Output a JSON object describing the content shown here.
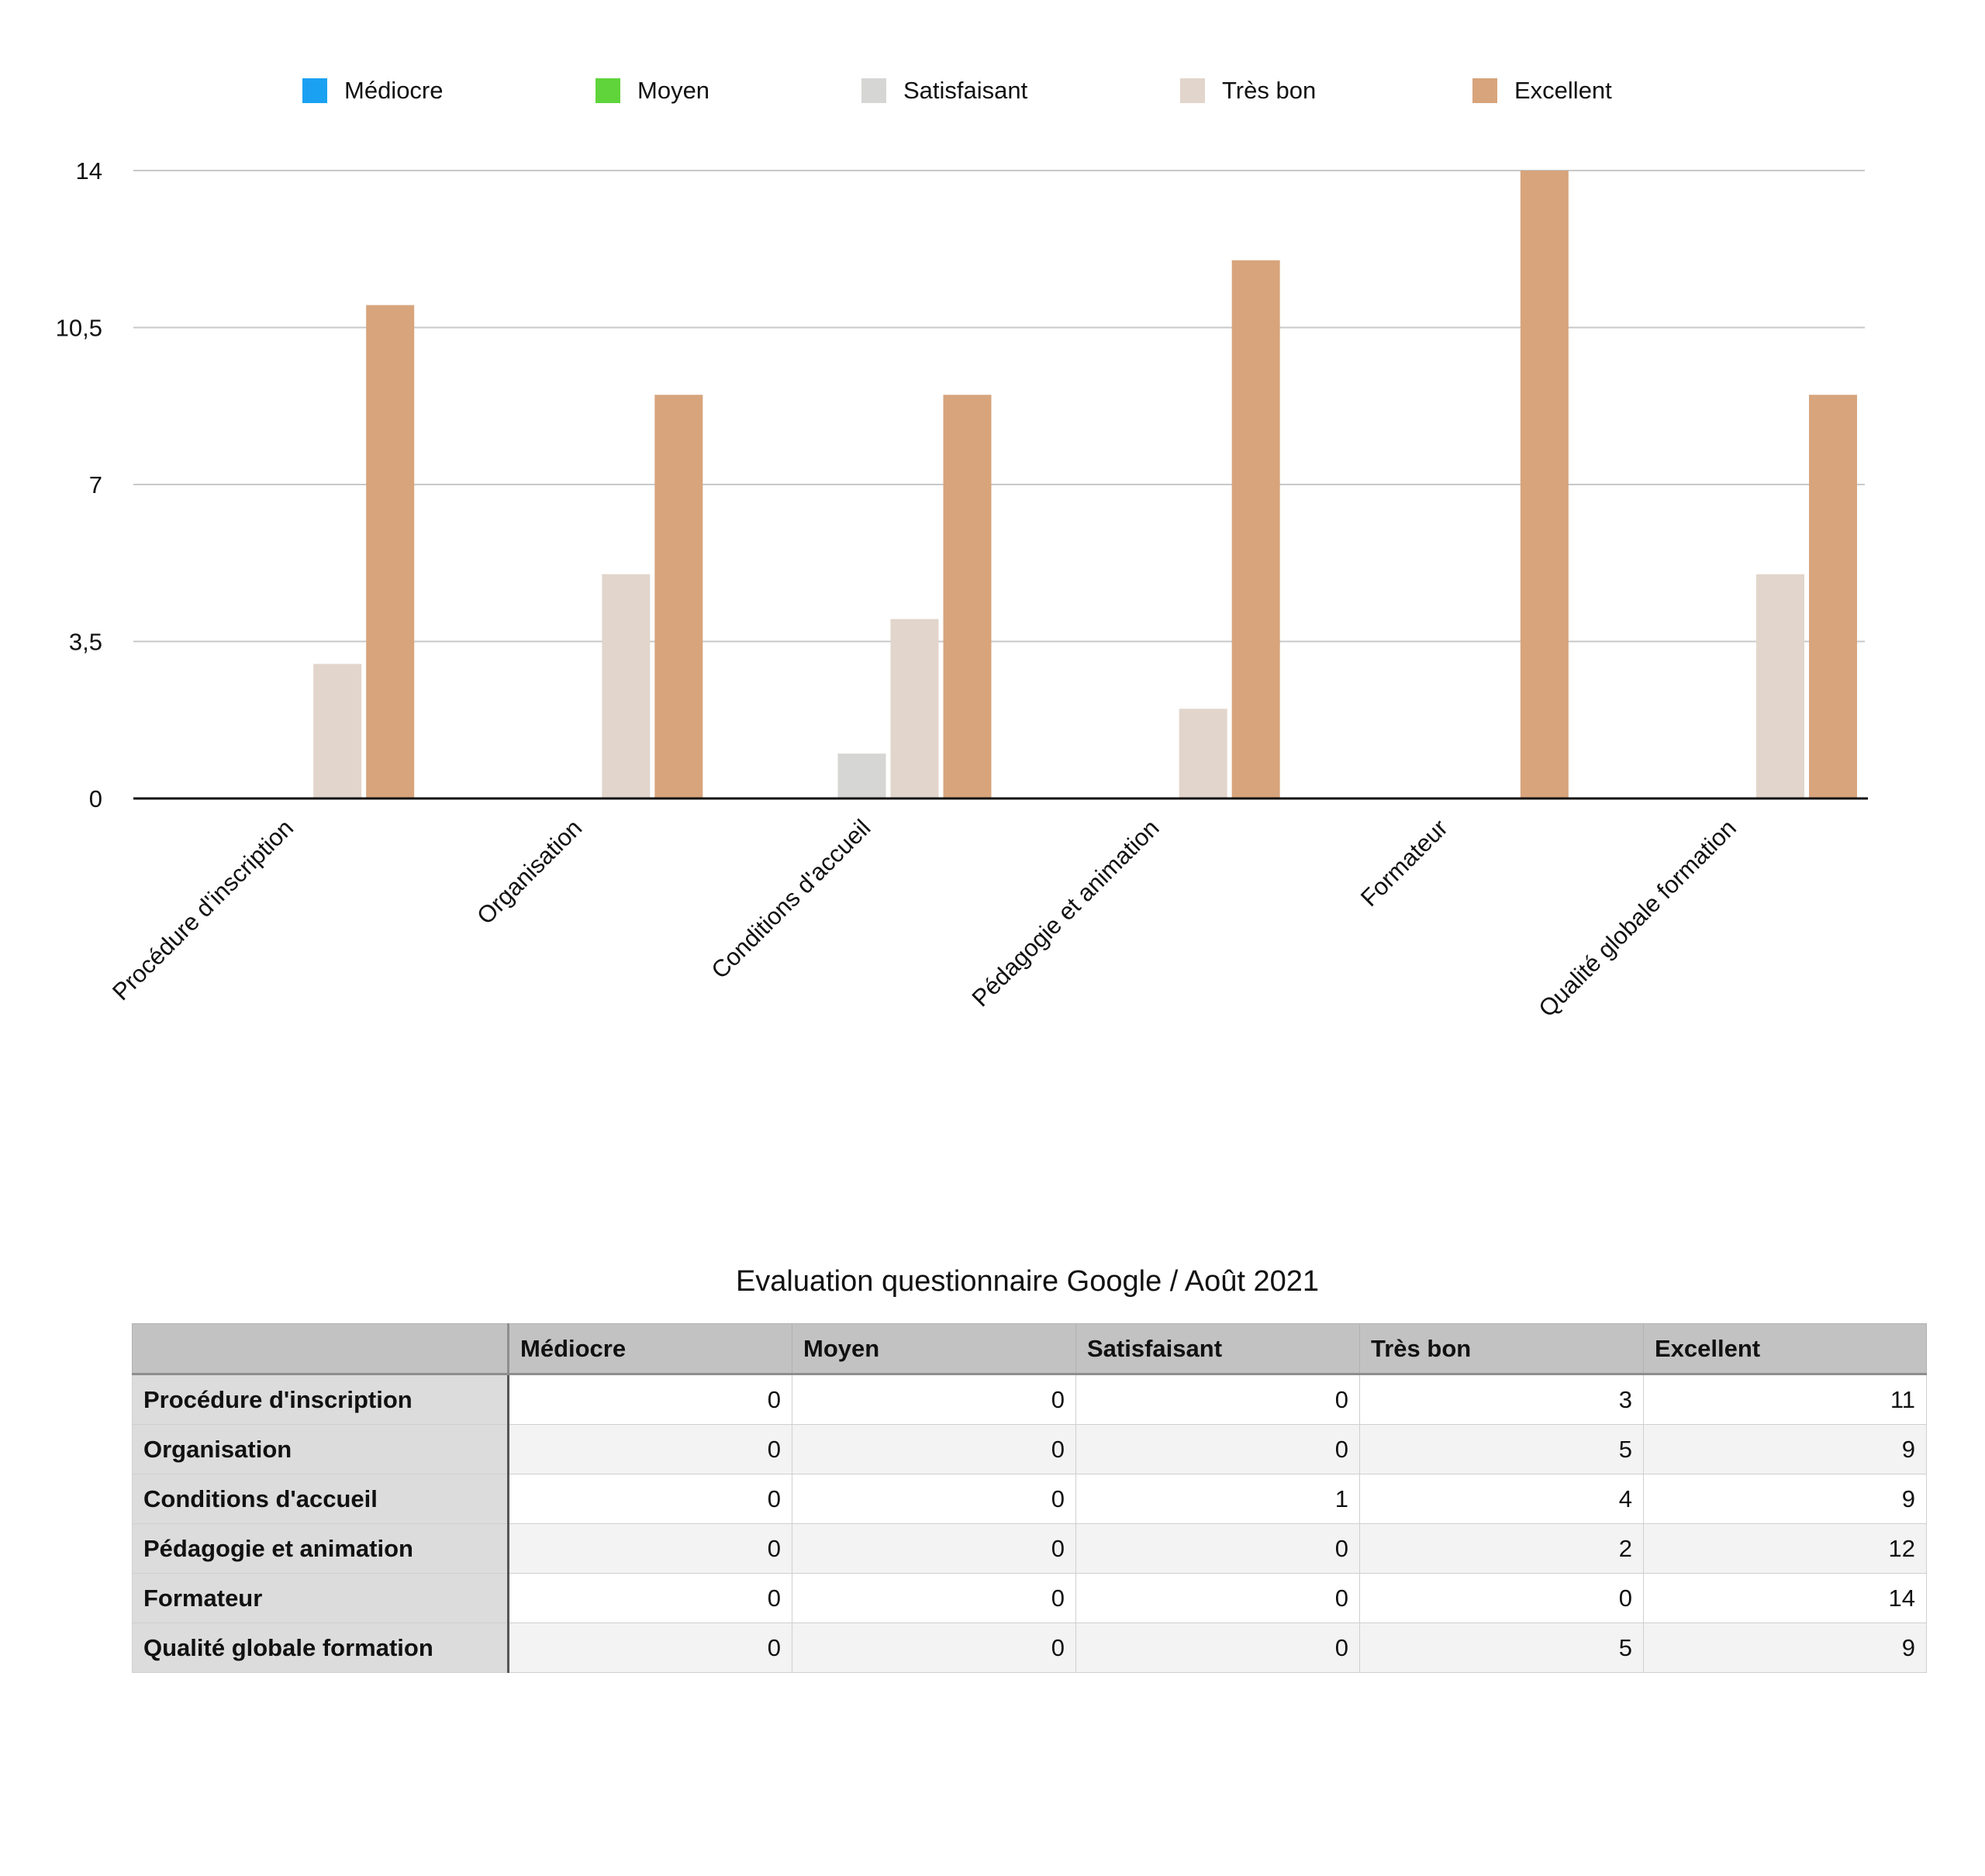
{
  "chart_data": {
    "type": "bar",
    "categories": [
      "Procédure d'inscription",
      "Organisation",
      "Conditions d'accueil",
      "Pédagogie et animation",
      "Formateur",
      "Qualité globale formation"
    ],
    "series": [
      {
        "name": "Médiocre",
        "color": "#1ba1f2",
        "values": [
          0,
          0,
          0,
          0,
          0,
          0
        ]
      },
      {
        "name": "Moyen",
        "color": "#5fd43b",
        "values": [
          0,
          0,
          0,
          0,
          0,
          0
        ]
      },
      {
        "name": "Satisfaisant",
        "color": "#d6d6d4",
        "values": [
          0,
          0,
          1,
          0,
          0,
          0
        ]
      },
      {
        "name": "Très bon",
        "color": "#e2d5cb",
        "values": [
          3,
          5,
          4,
          2,
          0,
          5
        ]
      },
      {
        "name": "Excellent",
        "color": "#d7a47c",
        "values": [
          11,
          9,
          9,
          12,
          14,
          9
        ]
      }
    ],
    "ylim": [
      0,
      14
    ],
    "yticks": [
      "0",
      "3,5",
      "7",
      "10,5",
      "14"
    ],
    "grid": true,
    "legend_position": "top"
  },
  "table": {
    "title": "Evaluation questionnaire Google / Août 2021",
    "columns": [
      "",
      "Médiocre",
      "Moyen",
      "Satisfaisant",
      "Très bon",
      "Excellent"
    ],
    "rows": [
      {
        "label": "Procédure d'inscription",
        "values": [
          "0",
          "0",
          "0",
          "3",
          "11"
        ]
      },
      {
        "label": "Organisation",
        "values": [
          "0",
          "0",
          "0",
          "5",
          "9"
        ]
      },
      {
        "label": "Conditions d'accueil",
        "values": [
          "0",
          "0",
          "1",
          "4",
          "9"
        ]
      },
      {
        "label": "Pédagogie et animation",
        "values": [
          "0",
          "0",
          "0",
          "2",
          "12"
        ]
      },
      {
        "label": "Formateur",
        "values": [
          "0",
          "0",
          "0",
          "0",
          "14"
        ]
      },
      {
        "label": "Qualité globale formation",
        "values": [
          "0",
          "0",
          "0",
          "5",
          "9"
        ]
      }
    ]
  }
}
